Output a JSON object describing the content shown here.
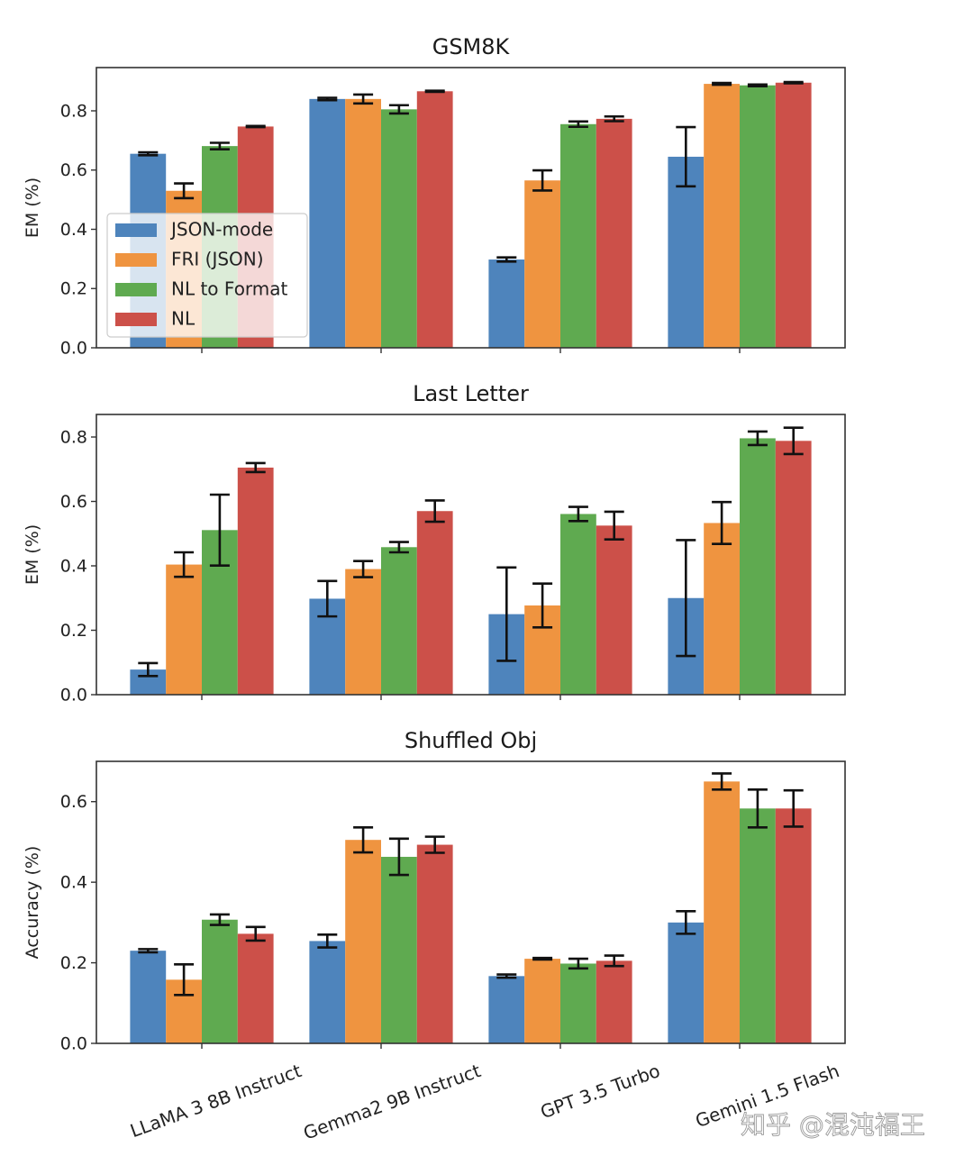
{
  "figure": {
    "watermark": "知乎 @混沌福王",
    "colors": {
      "JSON-mode": "#4e84bc",
      "FRI (JSON)": "#ef9440",
      "NL to Format": "#5faa50",
      "NL": "#cc5049",
      "error_bar": "#111111",
      "axis": "#333333"
    }
  },
  "chart_data": [
    {
      "type": "bar",
      "title": "GSM8K",
      "xlabel": "",
      "ylabel": "EM (%)",
      "ylim": [
        0,
        0.946
      ],
      "yticks": [
        "0.0",
        "0.2",
        "0.4",
        "0.6",
        "0.8"
      ],
      "categories": [
        "LLaMA 3 8B Instruct",
        "Gemma2 9B Instruct",
        "GPT 3.5 Turbo",
        "Gemini 1.5 Flash"
      ],
      "legend": {
        "placement": "center-left",
        "entries": [
          "JSON-mode",
          "FRI (JSON)",
          "NL to Format",
          "NL"
        ]
      },
      "series": [
        {
          "name": "JSON-mode",
          "values": [
            0.655,
            0.84,
            0.298,
            0.645
          ],
          "err": [
            0.005,
            0.004,
            0.007,
            0.1
          ]
        },
        {
          "name": "FRI (JSON)",
          "values": [
            0.53,
            0.84,
            0.565,
            0.891
          ],
          "err": [
            0.025,
            0.015,
            0.034,
            0.003
          ]
        },
        {
          "name": "NL to Format",
          "values": [
            0.681,
            0.805,
            0.755,
            0.886
          ],
          "err": [
            0.011,
            0.014,
            0.009,
            0.003
          ]
        },
        {
          "name": "NL",
          "values": [
            0.747,
            0.866,
            0.773,
            0.895
          ],
          "err": [
            0.002,
            0.002,
            0.008,
            0.002
          ]
        }
      ]
    },
    {
      "type": "bar",
      "title": "Last Letter",
      "xlabel": "",
      "ylabel": "EM (%)",
      "ylim": [
        0,
        0.87
      ],
      "yticks": [
        "0.0",
        "0.2",
        "0.4",
        "0.6",
        "0.8"
      ],
      "categories": [
        "LLaMA 3 8B Instruct",
        "Gemma2 9B Instruct",
        "GPT 3.5 Turbo",
        "Gemini 1.5 Flash"
      ],
      "series": [
        {
          "name": "JSON-mode",
          "values": [
            0.078,
            0.298,
            0.25,
            0.3
          ],
          "err": [
            0.02,
            0.055,
            0.145,
            0.18
          ]
        },
        {
          "name": "FRI (JSON)",
          "values": [
            0.404,
            0.39,
            0.277,
            0.533
          ],
          "err": [
            0.038,
            0.025,
            0.068,
            0.065
          ]
        },
        {
          "name": "NL to Format",
          "values": [
            0.511,
            0.458,
            0.561,
            0.796
          ],
          "err": [
            0.11,
            0.016,
            0.022,
            0.021
          ]
        },
        {
          "name": "NL",
          "values": [
            0.705,
            0.57,
            0.525,
            0.788
          ],
          "err": [
            0.014,
            0.033,
            0.043,
            0.041
          ]
        }
      ]
    },
    {
      "type": "bar",
      "title": "Shuffled Obj",
      "xlabel": "",
      "ylabel": "Accuracy (%)",
      "ylim": [
        0,
        0.7
      ],
      "yticks": [
        "0.0",
        "0.2",
        "0.4",
        "0.6"
      ],
      "categories": [
        "LLaMA 3 8B Instruct",
        "Gemma2 9B Instruct",
        "GPT 3.5 Turbo",
        "Gemini 1.5 Flash"
      ],
      "series": [
        {
          "name": "JSON-mode",
          "values": [
            0.23,
            0.254,
            0.167,
            0.3
          ],
          "err": [
            0.004,
            0.016,
            0.004,
            0.028
          ]
        },
        {
          "name": "FRI (JSON)",
          "values": [
            0.158,
            0.505,
            0.21,
            0.65
          ],
          "err": [
            0.038,
            0.031,
            0.002,
            0.02
          ]
        },
        {
          "name": "NL to Format",
          "values": [
            0.307,
            0.463,
            0.198,
            0.583
          ],
          "err": [
            0.013,
            0.045,
            0.012,
            0.047
          ]
        },
        {
          "name": "NL",
          "values": [
            0.272,
            0.493,
            0.205,
            0.583
          ],
          "err": [
            0.017,
            0.02,
            0.013,
            0.045
          ]
        }
      ]
    }
  ]
}
